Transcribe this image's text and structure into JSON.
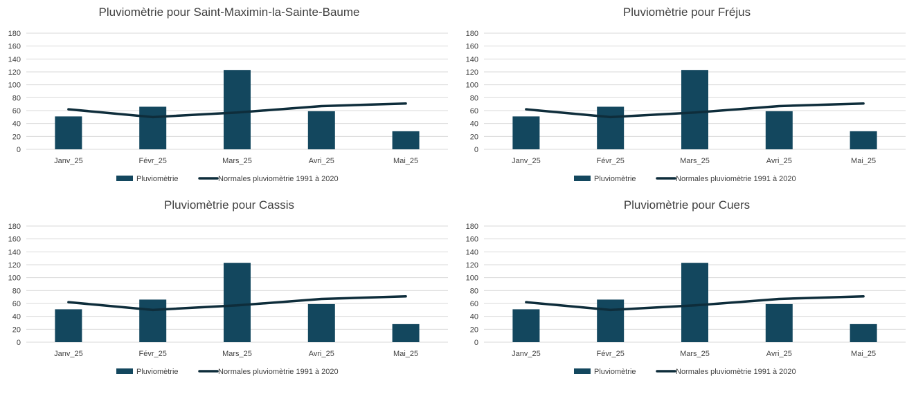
{
  "colors": {
    "bar": "#13475E",
    "line": "#0E2D3B",
    "grid": "#D9D9D9",
    "text": "#404040"
  },
  "chart_data": [
    {
      "type": "bar",
      "title": "Pluviomètrie pour Saint-Maximin-la-Sainte-Baume",
      "categories": [
        "Janv_25",
        "Févr_25",
        "Mars_25",
        "Avri_25",
        "Mai_25"
      ],
      "series": [
        {
          "name": "Pluviomètrie",
          "type": "bar",
          "values": [
            51,
            66,
            123,
            59,
            28
          ]
        },
        {
          "name": "Normales pluviomètrie 1991 à 2020",
          "type": "line",
          "values": [
            62,
            50,
            57,
            67,
            71
          ]
        }
      ],
      "ylim": [
        0,
        180
      ],
      "yticks": [
        "0",
        "20",
        "40",
        "60",
        "80",
        "100",
        "120",
        "140",
        "160",
        "180"
      ],
      "grid": true,
      "legend": "bottom"
    },
    {
      "type": "bar",
      "title": "Pluviomètrie pour Fréjus",
      "categories": [
        "Janv_25",
        "Févr_25",
        "Mars_25",
        "Avri_25",
        "Mai_25"
      ],
      "series": [
        {
          "name": "Pluviomètrie",
          "type": "bar",
          "values": [
            51,
            66,
            123,
            59,
            28
          ]
        },
        {
          "name": "Normales pluviomètrie 1991 à 2020",
          "type": "line",
          "values": [
            62,
            50,
            57,
            67,
            71
          ]
        }
      ],
      "ylim": [
        0,
        180
      ],
      "yticks": [
        "0",
        "20",
        "40",
        "60",
        "80",
        "100",
        "120",
        "140",
        "160",
        "180"
      ],
      "grid": true,
      "legend": "bottom"
    },
    {
      "type": "bar",
      "title": "Pluviomètrie pour Cassis",
      "categories": [
        "Janv_25",
        "Févr_25",
        "Mars_25",
        "Avri_25",
        "Mai_25"
      ],
      "series": [
        {
          "name": "Pluviomètrie",
          "type": "bar",
          "values": [
            51,
            66,
            123,
            59,
            28
          ]
        },
        {
          "name": "Normales pluviomètrie 1991 à 2020",
          "type": "line",
          "values": [
            62,
            50,
            57,
            67,
            71
          ]
        }
      ],
      "ylim": [
        0,
        180
      ],
      "yticks": [
        "0",
        "20",
        "40",
        "60",
        "80",
        "100",
        "120",
        "140",
        "160",
        "180"
      ],
      "grid": true,
      "legend": "bottom"
    },
    {
      "type": "bar",
      "title": "Pluviomètrie pour Cuers",
      "categories": [
        "Janv_25",
        "Févr_25",
        "Mars_25",
        "Avri_25",
        "Mai_25"
      ],
      "series": [
        {
          "name": "Pluviomètrie",
          "type": "bar",
          "values": [
            51,
            66,
            123,
            59,
            28
          ]
        },
        {
          "name": "Normales pluviomètrie 1991 à 2020",
          "type": "line",
          "values": [
            62,
            50,
            57,
            67,
            71
          ]
        }
      ],
      "ylim": [
        0,
        180
      ],
      "yticks": [
        "0",
        "20",
        "40",
        "60",
        "80",
        "100",
        "120",
        "140",
        "160",
        "180"
      ],
      "grid": true,
      "legend": "bottom"
    }
  ]
}
